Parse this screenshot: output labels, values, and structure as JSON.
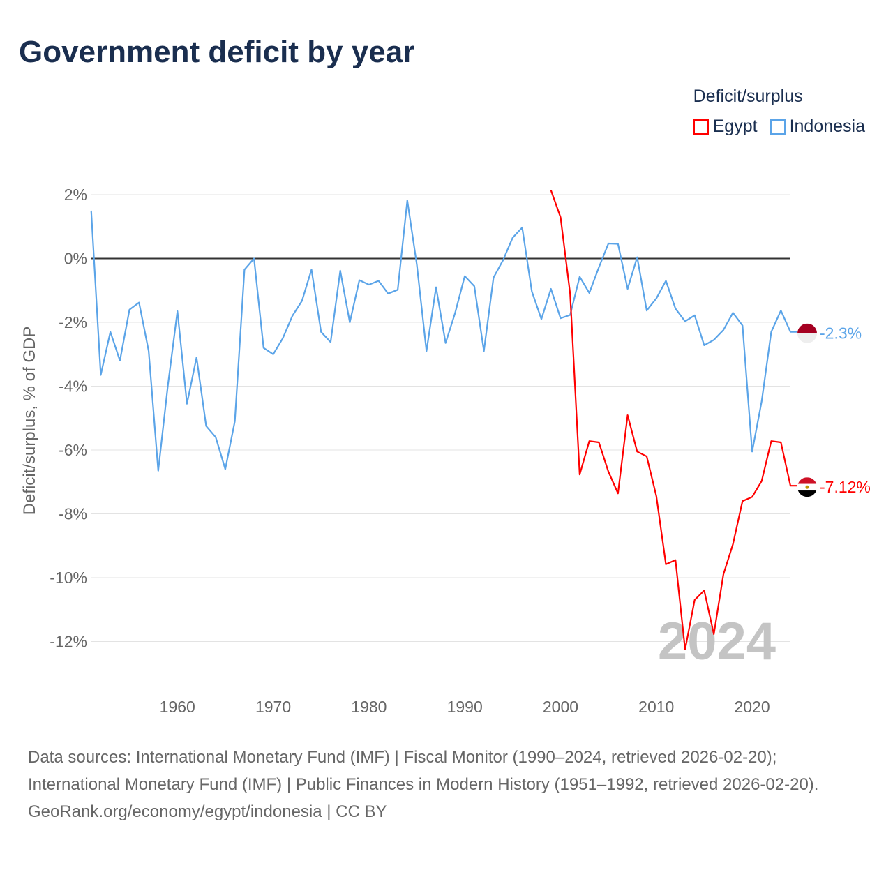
{
  "chart_data": {
    "type": "line",
    "title": "Government deficit by year",
    "ylabel": "Deficit/surplus, % of GDP",
    "xlabel": "",
    "ylim": [
      -13,
      2.2
    ],
    "xlim": [
      1951,
      2024
    ],
    "y_ticks": [
      2,
      0,
      -2,
      -4,
      -6,
      -8,
      -10,
      -12
    ],
    "y_tick_labels": [
      "2%",
      "0%",
      "-2%",
      "-4%",
      "-6%",
      "-8%",
      "-10%",
      "-12%"
    ],
    "x_ticks": [
      1960,
      1970,
      1980,
      1990,
      2000,
      2010,
      2020
    ],
    "x_tick_labels": [
      "1960",
      "1970",
      "1980",
      "1990",
      "2000",
      "2010",
      "2020"
    ],
    "grid": true,
    "legend_title": "Deficit/surplus",
    "legend_placement": "top-right",
    "year_watermark": "2024",
    "series": [
      {
        "name": "Egypt",
        "color": "#ff0000",
        "end_label": "-7.12%",
        "start_year": 1999,
        "values": [
          2.14,
          1.29,
          -1.1,
          -6.77,
          -5.72,
          -5.76,
          -6.68,
          -7.36,
          -4.91,
          -6.05,
          -6.2,
          -7.45,
          -9.58,
          -9.45,
          -12.25,
          -10.7,
          -10.4,
          -11.77,
          -9.9,
          -8.95,
          -7.6,
          -7.47,
          -6.97,
          -5.72,
          -5.76,
          -7.12
        ]
      },
      {
        "name": "Indonesia",
        "color": "#5ba4e8",
        "end_label": "-2.3%",
        "start_year": 1951,
        "values": [
          1.5,
          -3.65,
          -2.3,
          -3.2,
          -1.6,
          -1.38,
          -2.9,
          -6.65,
          -4.0,
          -1.65,
          -4.55,
          -3.1,
          -5.25,
          -5.6,
          -6.6,
          -5.1,
          -0.35,
          0.0,
          -2.8,
          -3.0,
          -2.5,
          -1.8,
          -1.33,
          -0.35,
          -2.3,
          -2.62,
          -0.38,
          -2.0,
          -0.68,
          -0.82,
          -0.7,
          -1.1,
          -0.98,
          1.82,
          -0.2,
          -2.9,
          -0.9,
          -2.65,
          -1.7,
          -0.55,
          -0.87,
          -2.9,
          -0.6,
          -0.05,
          0.65,
          0.97,
          -1.03,
          -1.9,
          -0.95,
          -1.87,
          -1.77,
          -0.57,
          -1.08,
          -0.28,
          0.47,
          0.46,
          -0.95,
          0.04,
          -1.63,
          -1.25,
          -0.7,
          -1.57,
          -1.97,
          -1.78,
          -2.72,
          -2.55,
          -2.24,
          -1.7,
          -2.1,
          -6.05,
          -4.47,
          -2.3,
          -1.63,
          -2.3
        ]
      }
    ]
  },
  "footer": {
    "sources": "Data sources: International Monetary Fund (IMF) | Fiscal Monitor (1990–2024, retrieved 2026-02-20); International Monetary Fund (IMF) | Public Finances in Modern History (1951–1992, retrieved 2026-02-20).",
    "credit": "GeoRank.org/economy/egypt/indonesia | CC BY"
  }
}
